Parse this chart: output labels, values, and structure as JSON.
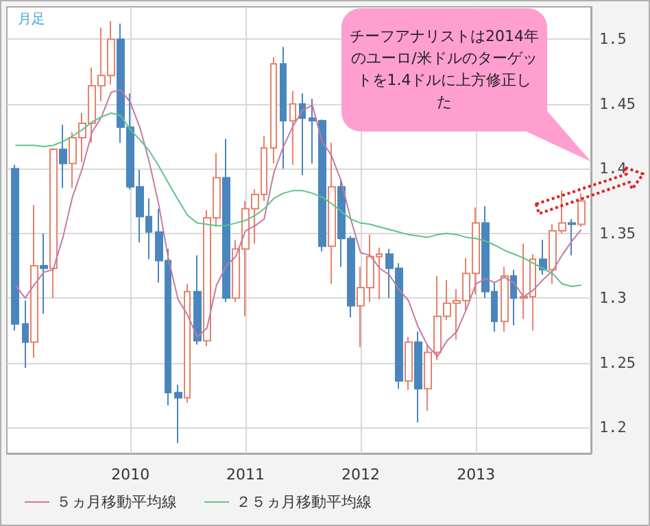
{
  "chart_data": {
    "type": "candlestick",
    "annotations": [
      "月足",
      "チーフアナリストは2014年のユーロ/米ドルのターゲットを1.4ドルに上方修正した"
    ],
    "x": [
      "2009-01",
      "2009-02",
      "2009-03",
      "2009-04",
      "2009-05",
      "2009-06",
      "2009-07",
      "2009-08",
      "2009-09",
      "2009-10",
      "2009-11",
      "2009-12",
      "2010-01",
      "2010-02",
      "2010-03",
      "2010-04",
      "2010-05",
      "2010-06",
      "2010-07",
      "2010-08",
      "2010-09",
      "2010-10",
      "2010-11",
      "2010-12",
      "2011-01",
      "2011-02",
      "2011-03",
      "2011-04",
      "2011-05",
      "2011-06",
      "2011-07",
      "2011-08",
      "2011-09",
      "2011-10",
      "2011-11",
      "2011-12",
      "2012-01",
      "2012-02",
      "2012-03",
      "2012-04",
      "2012-05",
      "2012-06",
      "2012-07",
      "2012-08",
      "2012-09",
      "2012-10",
      "2012-11",
      "2012-12",
      "2013-01",
      "2013-02",
      "2013-03",
      "2013-04",
      "2013-05",
      "2013-06",
      "2013-07",
      "2013-08",
      "2013-09",
      "2013-10",
      "2013-11",
      "2013-12"
    ],
    "xlim": [
      "2008-12-05",
      "2014-01-01"
    ],
    "xticks": [
      {
        "value": "2010-01",
        "label": "2010"
      },
      {
        "value": "2011-01",
        "label": "2011"
      },
      {
        "value": "2012-01",
        "label": "2012"
      },
      {
        "value": "2013-01",
        "label": "2013"
      }
    ],
    "ylim": [
      1.18,
      1.525
    ],
    "yticks": [
      1.2,
      1.25,
      1.3,
      1.35,
      1.4,
      1.45,
      1.5
    ],
    "grid": true,
    "legend": "bottom left",
    "series": [
      {
        "colors": [
          "#4a86be",
          "#4a86be",
          "#e8806a",
          "#4a86be",
          "#e8806a",
          "#4a86be",
          "#e8806a",
          "#e8806a",
          "#e8806a",
          "#e8806a",
          "#e8806a",
          "#4a86be",
          "#4a86be",
          "#4a86be",
          "#4a86be",
          "#4a86be",
          "#4a86be",
          "#4a86be",
          "#e8806a",
          "#4a86be",
          "#e8806a",
          "#e8806a",
          "#4a86be",
          "#e8806a",
          "#e8806a",
          "#e8806a",
          "#e8806a",
          "#e8806a",
          "#4a86be",
          "#e8806a",
          "#4a86be",
          "#4a86be",
          "#4a86be",
          "#e8806a",
          "#4a86be",
          "#4a86be",
          "#e8806a",
          "#e8806a",
          "#e8806a",
          "#4a86be",
          "#4a86be",
          "#e8806a",
          "#4a86be",
          "#e8806a",
          "#e8806a",
          "#e8806a",
          "#e8806a",
          "#e8806a",
          "#e8806a",
          "#4a86be",
          "#4a86be",
          "#e8806a",
          "#4a86be",
          "#e8806a",
          "#e8806a",
          "#4a86be",
          "#e8806a",
          "#e8806a",
          "#4a86be",
          "#e8806a"
        ],
        "ohlc": [
          [
            1.4,
            1.403,
            1.275,
            1.28
          ],
          [
            1.28,
            1.298,
            1.246,
            1.266
          ],
          [
            1.266,
            1.372,
            1.254,
            1.325
          ],
          [
            1.325,
            1.35,
            1.288,
            1.323
          ],
          [
            1.323,
            1.416,
            1.3,
            1.415
          ],
          [
            1.415,
            1.434,
            1.385,
            1.404
          ],
          [
            1.404,
            1.428,
            1.385,
            1.424
          ],
          [
            1.424,
            1.443,
            1.405,
            1.435
          ],
          [
            1.435,
            1.478,
            1.42,
            1.464
          ],
          [
            1.464,
            1.509,
            1.452,
            1.472
          ],
          [
            1.472,
            1.514,
            1.465,
            1.5
          ],
          [
            1.5,
            1.512,
            1.42,
            1.432
          ],
          [
            1.432,
            1.458,
            1.384,
            1.386
          ],
          [
            1.386,
            1.399,
            1.343,
            1.363
          ],
          [
            1.363,
            1.377,
            1.33,
            1.351
          ],
          [
            1.351,
            1.369,
            1.312,
            1.329
          ],
          [
            1.329,
            1.338,
            1.217,
            1.227
          ],
          [
            1.227,
            1.233,
            1.188,
            1.223
          ],
          [
            1.223,
            1.311,
            1.219,
            1.305
          ],
          [
            1.305,
            1.333,
            1.264,
            1.267
          ],
          [
            1.267,
            1.368,
            1.263,
            1.362
          ],
          [
            1.362,
            1.412,
            1.355,
            1.393
          ],
          [
            1.393,
            1.423,
            1.297,
            1.3
          ],
          [
            1.3,
            1.345,
            1.297,
            1.338
          ],
          [
            1.338,
            1.375,
            1.286,
            1.369
          ],
          [
            1.369,
            1.384,
            1.342,
            1.38
          ],
          [
            1.38,
            1.425,
            1.375,
            1.416
          ],
          [
            1.416,
            1.486,
            1.404,
            1.481
          ],
          [
            1.481,
            1.494,
            1.4,
            1.437
          ],
          [
            1.437,
            1.46,
            1.403,
            1.45
          ],
          [
            1.45,
            1.458,
            1.395,
            1.439
          ],
          [
            1.439,
            1.454,
            1.404,
            1.437
          ],
          [
            1.437,
            1.438,
            1.336,
            1.34
          ],
          [
            1.34,
            1.42,
            1.311,
            1.386
          ],
          [
            1.386,
            1.392,
            1.324,
            1.346
          ],
          [
            1.346,
            1.348,
            1.285,
            1.294
          ],
          [
            1.294,
            1.324,
            1.262,
            1.308
          ],
          [
            1.308,
            1.349,
            1.297,
            1.332
          ],
          [
            1.332,
            1.339,
            1.299,
            1.334
          ],
          [
            1.334,
            1.338,
            1.3,
            1.323
          ],
          [
            1.323,
            1.327,
            1.23,
            1.236
          ],
          [
            1.236,
            1.27,
            1.229,
            1.266
          ],
          [
            1.266,
            1.274,
            1.204,
            1.23
          ],
          [
            1.23,
            1.264,
            1.213,
            1.258
          ],
          [
            1.258,
            1.317,
            1.252,
            1.286
          ],
          [
            1.286,
            1.314,
            1.283,
            1.296
          ],
          [
            1.296,
            1.307,
            1.268,
            1.298
          ],
          [
            1.298,
            1.331,
            1.29,
            1.319
          ],
          [
            1.319,
            1.37,
            1.303,
            1.358
          ],
          [
            1.358,
            1.371,
            1.3,
            1.305
          ],
          [
            1.305,
            1.312,
            1.274,
            1.282
          ],
          [
            1.282,
            1.324,
            1.274,
            1.317
          ],
          [
            1.317,
            1.322,
            1.279,
            1.3
          ],
          [
            1.3,
            1.342,
            1.284,
            1.301
          ],
          [
            1.301,
            1.334,
            1.275,
            1.33
          ],
          [
            1.33,
            1.345,
            1.318,
            1.322
          ],
          [
            1.322,
            1.357,
            1.311,
            1.352
          ],
          [
            1.352,
            1.383,
            1.35,
            1.358
          ],
          [
            1.358,
            1.361,
            1.333,
            1.357
          ],
          [
            1.357,
            1.381,
            1.355,
            1.375
          ]
        ]
      },
      {
        "type": "line",
        "name": "５ヵ月移動平均線",
        "color": "#c47aa2",
        "values": [
          1.31,
          1.3,
          1.31,
          1.32,
          1.322,
          1.347,
          1.378,
          1.4,
          1.428,
          1.44,
          1.459,
          1.461,
          1.451,
          1.431,
          1.406,
          1.372,
          1.331,
          1.299,
          1.287,
          1.27,
          1.277,
          1.31,
          1.325,
          1.332,
          1.352,
          1.356,
          1.361,
          1.397,
          1.417,
          1.433,
          1.445,
          1.449,
          1.421,
          1.41,
          1.39,
          1.361,
          1.335,
          1.333,
          1.323,
          1.318,
          1.307,
          1.298,
          1.278,
          1.263,
          1.255,
          1.267,
          1.274,
          1.291,
          1.311,
          1.315,
          1.312,
          1.316,
          1.312,
          1.301,
          1.306,
          1.314,
          1.321,
          1.333,
          1.344,
          1.353
        ]
      },
      {
        "type": "line",
        "name": "２５ヵ月移動平均線",
        "color": "#5cc48a",
        "values": [
          1.418,
          1.418,
          1.418,
          1.417,
          1.418,
          1.421,
          1.425,
          1.43,
          1.436,
          1.44,
          1.443,
          1.441,
          1.43,
          1.422,
          1.414,
          1.402,
          1.389,
          1.376,
          1.364,
          1.358,
          1.357,
          1.356,
          1.356,
          1.358,
          1.36,
          1.364,
          1.369,
          1.377,
          1.381,
          1.383,
          1.383,
          1.381,
          1.378,
          1.373,
          1.367,
          1.361,
          1.358,
          1.357,
          1.355,
          1.353,
          1.351,
          1.349,
          1.348,
          1.347,
          1.349,
          1.35,
          1.349,
          1.347,
          1.346,
          1.344,
          1.341,
          1.337,
          1.334,
          1.331,
          1.327,
          1.323,
          1.319,
          1.311,
          1.309,
          1.31
        ]
      }
    ]
  }
}
